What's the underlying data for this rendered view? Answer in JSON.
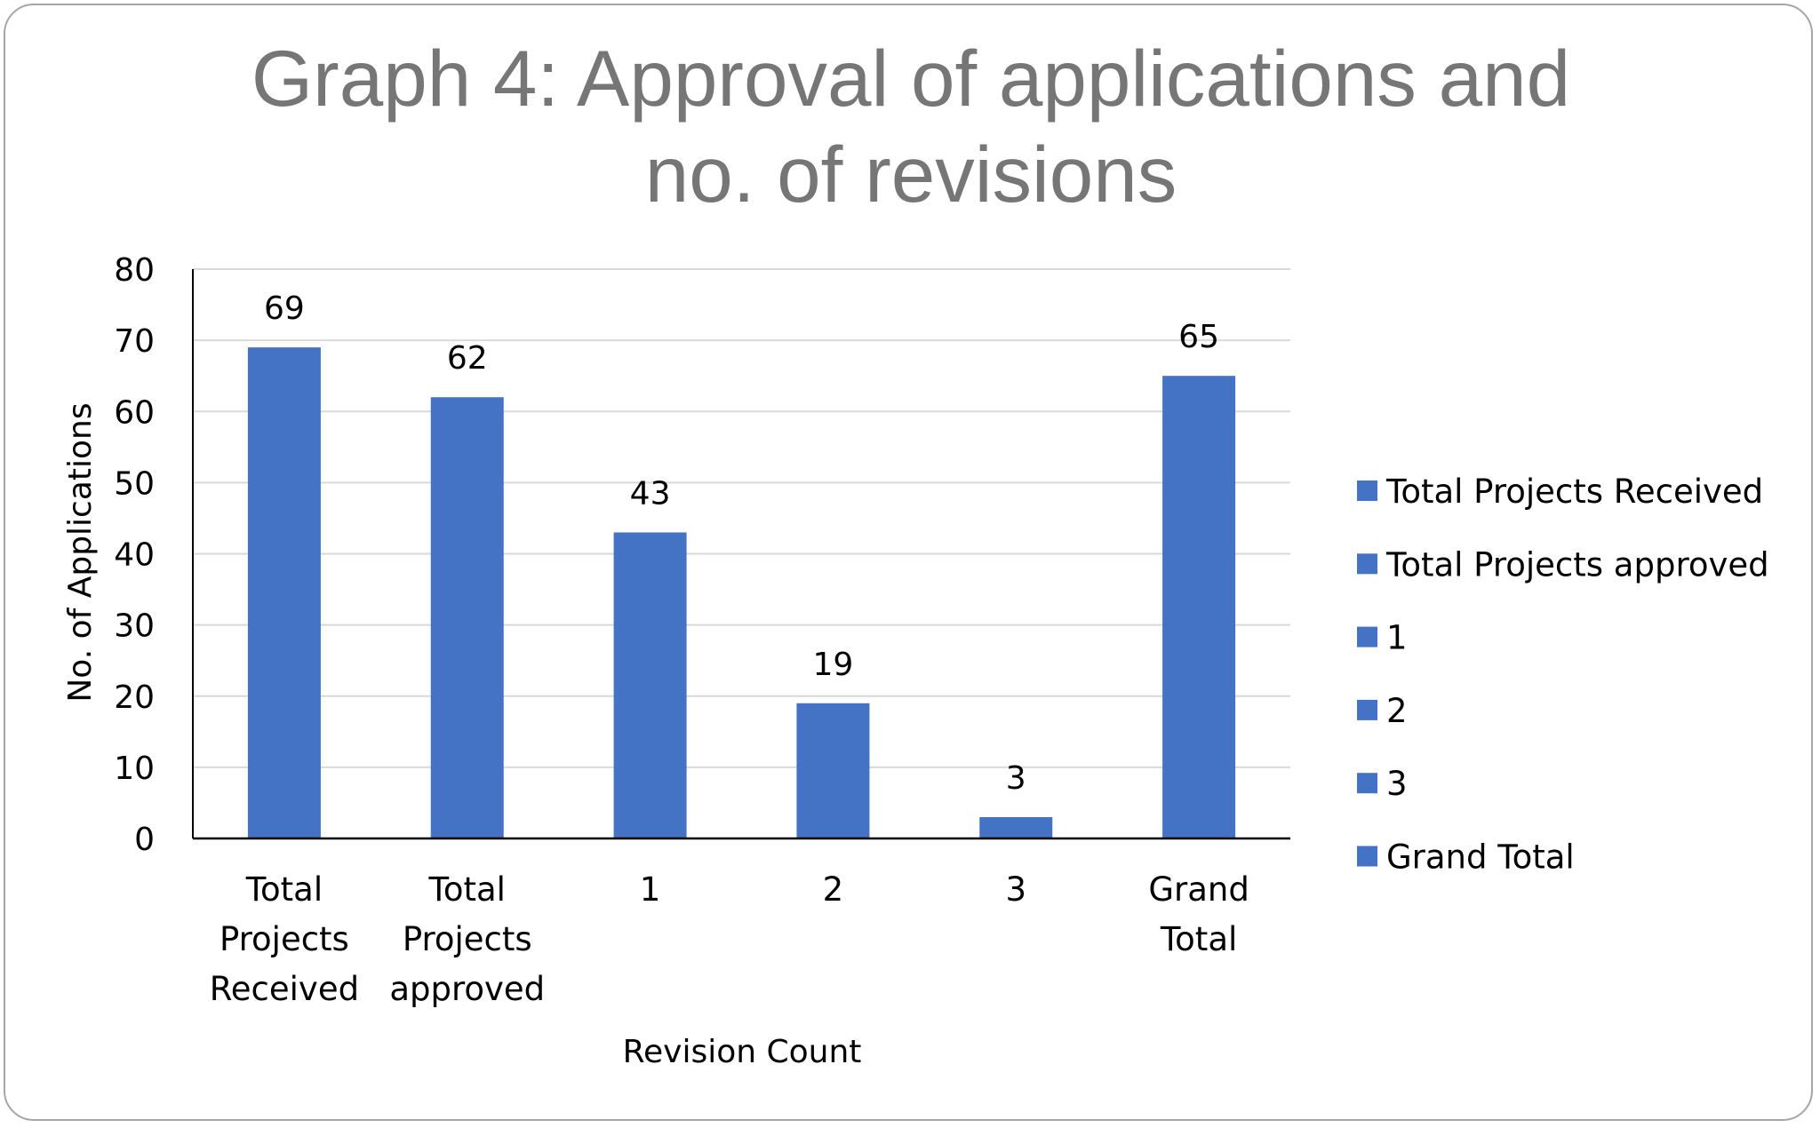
{
  "chart_data": {
    "type": "bar",
    "title_lines": [
      "Graph 4: Approval of applications and",
      "no. of revisions"
    ],
    "xlabel": "Revision Count",
    "ylabel": "No. of Applications",
    "categories": [
      "Total Projects Received",
      "Total Projects approved",
      "1",
      "2",
      "3",
      "Grand Total"
    ],
    "category_label_lines": [
      [
        "Total",
        "Projects",
        "Received"
      ],
      [
        "Total",
        "Projects",
        "approved"
      ],
      [
        "1"
      ],
      [
        "2"
      ],
      [
        "3"
      ],
      [
        "Grand",
        "Total"
      ]
    ],
    "values": [
      69,
      62,
      43,
      19,
      3,
      65
    ],
    "ylim": [
      0,
      80
    ],
    "yticks": [
      0,
      10,
      20,
      30,
      40,
      50,
      60,
      70,
      80
    ],
    "grid": true,
    "legend_position": "right",
    "legend": [
      "Total Projects Received",
      "Total Projects approved",
      "1",
      "2",
      "3",
      "Grand Total"
    ],
    "bar_color": "#4472c4",
    "gridline_color": "#d9d9d9",
    "title_color": "#767676"
  }
}
